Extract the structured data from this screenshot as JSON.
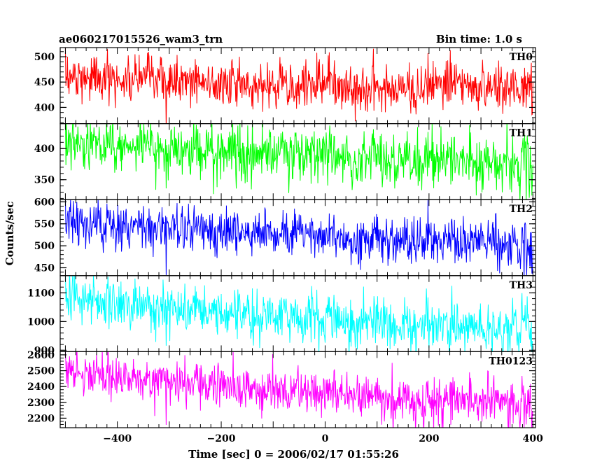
{
  "header": {
    "title": "ae060217015526_wam3_trn",
    "bin_time": "Bin time: 1.0 s"
  },
  "chart_data": {
    "type": "line",
    "xlabel": "Time [sec] 0 = 2006/02/17 01:55:26",
    "ylabel": "Counts/sec",
    "xlim": [
      -510,
      405
    ],
    "x_ticks": [
      -400,
      -200,
      0,
      200,
      400
    ],
    "x_tick_labels": [
      "−400",
      "−200",
      "0",
      "200",
      "400"
    ],
    "bin_time_s": 1.0,
    "panels": [
      {
        "name": "TH0",
        "color": "#ff0000",
        "ylim": [
          368,
          518
        ],
        "yticks": [
          400,
          450,
          500
        ],
        "x_range": [
          -500,
          400
        ],
        "trend": [
          [
            -500,
            462
          ],
          [
            -300,
            450
          ],
          [
            0,
            442
          ],
          [
            400,
            440
          ]
        ],
        "noise": 25
      },
      {
        "name": "TH1",
        "color": "#00ff00",
        "ylim": [
          318,
          440
        ],
        "yticks": [
          350,
          400
        ],
        "x_range": [
          -500,
          400
        ],
        "trend": [
          [
            -500,
            412
          ],
          [
            -300,
            400
          ],
          [
            0,
            388
          ],
          [
            400,
            375
          ]
        ],
        "noise": 22
      },
      {
        "name": "TH2",
        "color": "#0000ff",
        "ylim": [
          432,
          605
        ],
        "yticks": [
          450,
          500,
          550,
          600
        ],
        "x_range": [
          -500,
          400
        ],
        "trend": [
          [
            -500,
            550
          ],
          [
            -200,
            535
          ],
          [
            100,
            515
          ],
          [
            400,
            505
          ]
        ],
        "noise": 28
      },
      {
        "name": "TH3",
        "color": "#00ffff",
        "ylim": [
          895,
          1160
        ],
        "yticks": [
          900,
          1000,
          1100
        ],
        "x_range": [
          -500,
          400
        ],
        "trend": [
          [
            -500,
            1085
          ],
          [
            -300,
            1050
          ],
          [
            0,
            1005
          ],
          [
            200,
            980
          ],
          [
            400,
            975
          ]
        ],
        "noise": 45
      },
      {
        "name": "TH0123",
        "color": "#ff00ff",
        "ylim": [
          2140,
          2620
        ],
        "yticks": [
          2200,
          2300,
          2400,
          2500,
          2600
        ],
        "x_range": [
          -500,
          400
        ],
        "trend": [
          [
            -500,
            2490
          ],
          [
            -300,
            2430
          ],
          [
            0,
            2355
          ],
          [
            150,
            2320
          ],
          [
            400,
            2290
          ]
        ],
        "noise": 70
      }
    ]
  }
}
